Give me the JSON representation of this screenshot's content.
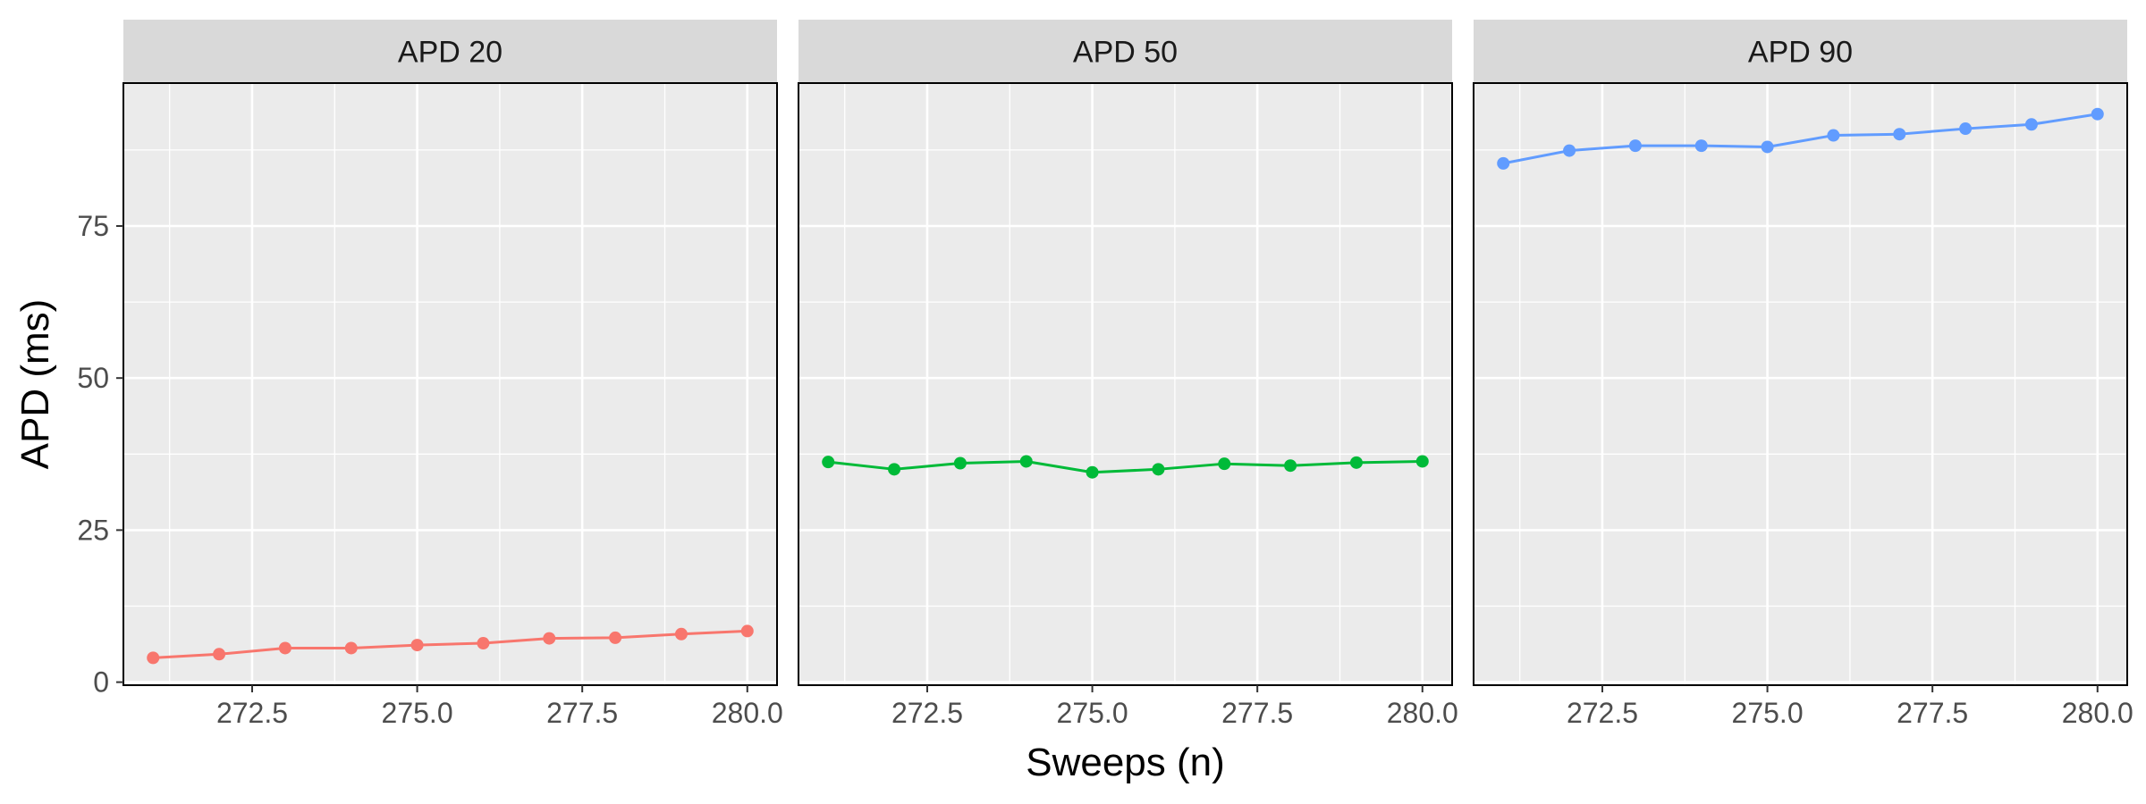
{
  "chart_data": {
    "type": "line",
    "xlabel": "Sweeps (n)",
    "ylabel": "APD (ms)",
    "x_ticks": [
      "272.5",
      "275.0",
      "277.5",
      "280.0"
    ],
    "x_tick_values": [
      272.5,
      275.0,
      277.5,
      280.0
    ],
    "y_ticks": [
      "0",
      "25",
      "50",
      "75"
    ],
    "y_tick_values": [
      0,
      25,
      50,
      75
    ],
    "xlim": [
      270.55,
      280.45
    ],
    "ylim": [
      -0.5,
      98.5
    ],
    "grid": true,
    "legend": "none",
    "facets": [
      {
        "label": "APD 20",
        "color": "#F8766D",
        "x": [
          271,
          272,
          273,
          274,
          275,
          276,
          277,
          278,
          279,
          280
        ],
        "y": [
          4.0,
          4.6,
          5.6,
          5.6,
          6.1,
          6.4,
          7.2,
          7.3,
          7.9,
          8.4
        ]
      },
      {
        "label": "APD 50",
        "color": "#00BA38",
        "x": [
          271,
          272,
          273,
          274,
          275,
          276,
          277,
          278,
          279,
          280
        ],
        "y": [
          36.2,
          35.0,
          36.0,
          36.3,
          34.5,
          35.0,
          35.9,
          35.6,
          36.1,
          36.3
        ]
      },
      {
        "label": "APD 90",
        "color": "#619CFF",
        "x": [
          271,
          272,
          273,
          274,
          275,
          276,
          277,
          278,
          279,
          280
        ],
        "y": [
          85.3,
          87.4,
          88.2,
          88.2,
          88.0,
          89.9,
          90.1,
          91.0,
          91.7,
          93.4
        ]
      }
    ]
  }
}
